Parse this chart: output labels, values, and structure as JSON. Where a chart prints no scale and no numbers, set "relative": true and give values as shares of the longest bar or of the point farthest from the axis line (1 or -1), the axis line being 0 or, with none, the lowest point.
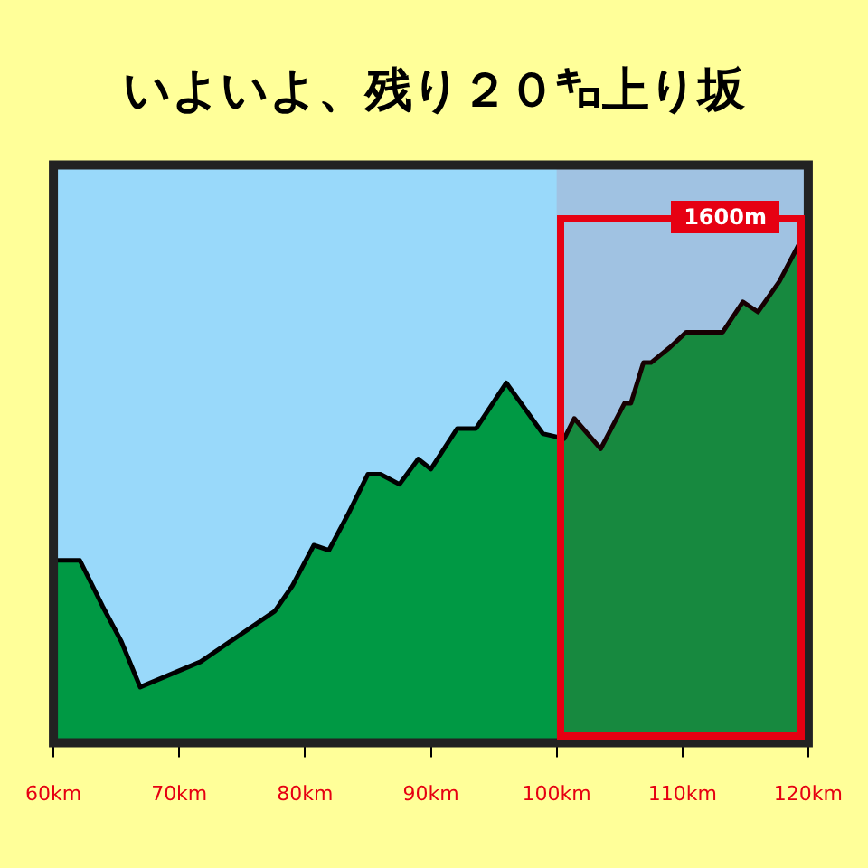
{
  "chart_data": {
    "type": "area",
    "title": "いよいよ、残り２０㌔上り坂",
    "relative": true,
    "color": "#009944",
    "legend": false,
    "grid": false,
    "x": [
      60,
      60.4,
      62.1,
      63.9,
      65.4,
      66.9,
      71.7,
      77.6,
      79.0,
      80.7,
      81.9,
      83.4,
      85.0,
      86.0,
      87.5,
      89.0,
      90,
      92.1,
      93.6,
      96.0,
      98.9,
      100.6,
      101.4,
      103.5,
      105.4,
      105.9,
      106.9,
      107.5,
      109.0,
      110.3,
      112.1,
      113.2,
      114.8,
      116.0,
      117.7,
      119.4,
      119.7,
      120
    ],
    "values": [
      0.36,
      0.36,
      0.36,
      0.27,
      0.2,
      0.11,
      0.16,
      0.26,
      0.31,
      0.39,
      0.38,
      0.45,
      0.53,
      0.53,
      0.51,
      0.56,
      0.54,
      0.62,
      0.62,
      0.71,
      0.61,
      0.6,
      0.64,
      0.58,
      0.67,
      0.67,
      0.75,
      0.75,
      0.78,
      0.81,
      0.81,
      0.81,
      0.87,
      0.85,
      0.91,
      0.99,
      1,
      1
    ],
    "xlim": [
      60,
      120
    ],
    "xticks": [
      {
        "value": 60,
        "label": "60km"
      },
      {
        "value": 70,
        "label": "70km"
      },
      {
        "value": 80,
        "label": "80km"
      },
      {
        "value": 90,
        "label": "90km"
      },
      {
        "value": 100,
        "label": "100km"
      },
      {
        "value": 110,
        "label": "110km"
      },
      {
        "value": 120,
        "label": "120km"
      }
    ],
    "bands": [
      {
        "axis": "x",
        "from": 100,
        "to": 120,
        "label": "1600m",
        "color": "#e60012"
      }
    ]
  }
}
